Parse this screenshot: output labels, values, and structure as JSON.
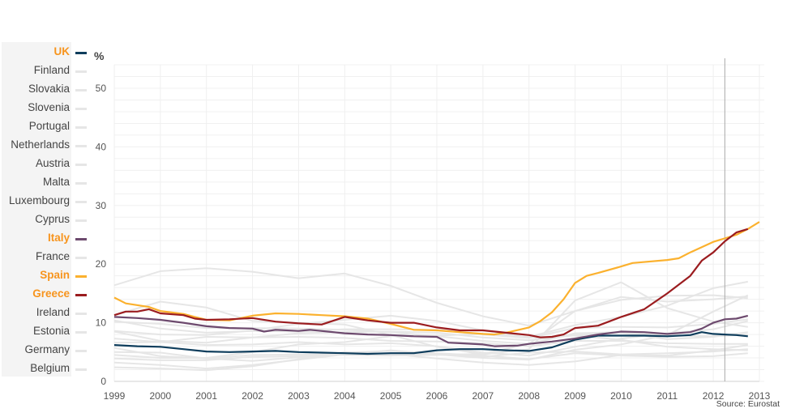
{
  "chart_data": {
    "type": "line",
    "ylabel": "%",
    "source": "Source: Eurostat",
    "xlim": [
      1999,
      2013
    ],
    "ylim": [
      0,
      54
    ],
    "x_ticks": [
      "1999",
      "2000",
      "2001",
      "2002",
      "2003",
      "2004",
      "2005",
      "2006",
      "2007",
      "2008",
      "2009",
      "2010",
      "2011",
      "2012",
      "2013"
    ],
    "y_ticks": [
      "0",
      "10",
      "20",
      "30",
      "40",
      "50"
    ],
    "grid": true,
    "marker_line_x": 2012.25,
    "legend_position": "left",
    "legend": [
      {
        "name": "UK",
        "highlight": true,
        "color": "#0e3d5c"
      },
      {
        "name": "Finland",
        "highlight": false,
        "color": "#e6e6e6"
      },
      {
        "name": "Slovakia",
        "highlight": false,
        "color": "#e6e6e6"
      },
      {
        "name": "Slovenia",
        "highlight": false,
        "color": "#e6e6e6"
      },
      {
        "name": "Portugal",
        "highlight": false,
        "color": "#e6e6e6"
      },
      {
        "name": "Netherlands",
        "highlight": false,
        "color": "#e6e6e6"
      },
      {
        "name": "Austria",
        "highlight": false,
        "color": "#e6e6e6"
      },
      {
        "name": "Malta",
        "highlight": false,
        "color": "#e6e6e6"
      },
      {
        "name": "Luxembourg",
        "highlight": false,
        "color": "#e6e6e6"
      },
      {
        "name": "Cyprus",
        "highlight": false,
        "color": "#e6e6e6"
      },
      {
        "name": "Italy",
        "highlight": true,
        "color": "#6d4a6e"
      },
      {
        "name": "France",
        "highlight": false,
        "color": "#e6e6e6"
      },
      {
        "name": "Spain",
        "highlight": true,
        "color": "#fbb12e"
      },
      {
        "name": "Greece",
        "highlight": true,
        "color": "#9b1c1f"
      },
      {
        "name": "Ireland",
        "highlight": false,
        "color": "#e6e6e6"
      },
      {
        "name": "Estonia",
        "highlight": false,
        "color": "#e6e6e6"
      },
      {
        "name": "Germany",
        "highlight": false,
        "color": "#e6e6e6"
      },
      {
        "name": "Belgium",
        "highlight": false,
        "color": "#e6e6e6"
      }
    ],
    "grey_x": [
      1999,
      2000,
      2001,
      2002,
      2003,
      2004,
      2005,
      2006,
      2007,
      2008,
      2009,
      2010,
      2011,
      2012,
      2012.75
    ],
    "series": [
      {
        "name": "Finland",
        "values": [
          10.2,
          9.8,
          9.1,
          9.1,
          9.0,
          8.8,
          8.4,
          7.7,
          6.9,
          6.4,
          8.2,
          8.4,
          7.8,
          7.7,
          8.0
        ]
      },
      {
        "name": "Slovakia",
        "values": [
          16.4,
          18.8,
          19.3,
          18.7,
          17.6,
          18.4,
          16.3,
          13.4,
          11.1,
          9.5,
          12.0,
          14.4,
          13.6,
          14.0,
          14.5
        ]
      },
      {
        "name": "Slovenia",
        "values": [
          7.3,
          6.7,
          6.2,
          6.3,
          6.7,
          6.3,
          6.5,
          6.0,
          4.9,
          4.4,
          5.9,
          7.3,
          8.2,
          8.9,
          10.3
        ]
      },
      {
        "name": "Portugal",
        "values": [
          4.5,
          4.0,
          4.0,
          5.0,
          6.3,
          6.7,
          7.7,
          7.8,
          8.1,
          7.6,
          9.6,
          11.0,
          12.9,
          15.9,
          17.0
        ]
      },
      {
        "name": "Netherlands",
        "values": [
          3.2,
          2.8,
          2.2,
          2.8,
          3.7,
          4.6,
          4.7,
          3.9,
          3.2,
          2.8,
          3.4,
          4.5,
          4.4,
          5.3,
          6.2
        ]
      },
      {
        "name": "Austria",
        "values": [
          3.9,
          3.6,
          3.6,
          4.2,
          4.3,
          4.9,
          5.2,
          4.8,
          4.4,
          3.8,
          4.8,
          4.4,
          4.2,
          4.3,
          4.8
        ]
      },
      {
        "name": "Malta",
        "values": [
          6.6,
          6.7,
          7.6,
          7.5,
          7.6,
          7.4,
          6.9,
          6.8,
          6.5,
          6.0,
          6.9,
          6.9,
          6.5,
          6.4,
          6.4
        ]
      },
      {
        "name": "Luxembourg",
        "values": [
          2.4,
          2.2,
          1.9,
          2.6,
          3.8,
          5.0,
          4.6,
          4.6,
          4.2,
          4.9,
          5.1,
          4.6,
          4.8,
          5.1,
          5.5
        ]
      },
      {
        "name": "Cyprus",
        "values": [
          5.0,
          4.9,
          3.9,
          3.5,
          4.1,
          4.6,
          5.3,
          4.6,
          4.0,
          3.7,
          5.4,
          6.3,
          7.9,
          11.9,
          14.7
        ]
      },
      {
        "name": "France",
        "values": [
          10.4,
          9.0,
          8.3,
          8.6,
          8.5,
          8.9,
          8.9,
          8.8,
          8.0,
          7.4,
          9.1,
          9.3,
          9.2,
          9.8,
          10.6
        ]
      },
      {
        "name": "Ireland",
        "values": [
          5.7,
          4.3,
          3.9,
          4.5,
          4.6,
          4.5,
          4.4,
          4.5,
          4.7,
          6.4,
          12.0,
          13.9,
          14.6,
          14.7,
          14.2
        ]
      },
      {
        "name": "Estonia",
        "values": [
          11.3,
          13.6,
          12.6,
          10.3,
          10.0,
          9.7,
          7.9,
          5.9,
          4.6,
          5.5,
          13.8,
          16.9,
          12.5,
          10.2,
          9.3
        ]
      },
      {
        "name": "Germany",
        "values": [
          8.6,
          8.0,
          7.9,
          8.7,
          9.8,
          10.5,
          11.2,
          10.3,
          8.7,
          7.5,
          7.8,
          7.1,
          5.9,
          5.5,
          5.3
        ]
      },
      {
        "name": "Belgium",
        "values": [
          8.5,
          6.9,
          6.6,
          7.5,
          8.2,
          8.4,
          8.5,
          8.3,
          7.5,
          7.0,
          7.9,
          8.3,
          7.2,
          7.6,
          8.4
        ]
      },
      {
        "name": "UK",
        "x": [
          1999,
          1999.5,
          2000,
          2000.5,
          2001,
          2001.5,
          2002,
          2002.5,
          2003,
          2003.5,
          2004,
          2004.5,
          2005,
          2005.5,
          2006,
          2006.5,
          2007,
          2007.5,
          2008,
          2008.5,
          2009,
          2009.5,
          2010,
          2010.5,
          2011,
          2011.5,
          2011.75,
          2012,
          2012.5,
          2012.75
        ],
        "values": [
          6.2,
          6.0,
          5.9,
          5.5,
          5.1,
          5.0,
          5.1,
          5.2,
          5.0,
          4.9,
          4.8,
          4.7,
          4.8,
          4.8,
          5.3,
          5.5,
          5.5,
          5.3,
          5.2,
          5.8,
          7.1,
          7.8,
          7.8,
          7.8,
          7.7,
          7.9,
          8.4,
          8.1,
          7.9,
          7.7
        ]
      },
      {
        "name": "Italy",
        "x": [
          1999,
          1999.5,
          2000,
          2000.5,
          2001,
          2001.5,
          2002,
          2002.25,
          2002.5,
          2003,
          2003.25,
          2004,
          2004.5,
          2005,
          2005.5,
          2006,
          2006.25,
          2006.5,
          2007,
          2007.25,
          2007.75,
          2008,
          2008.5,
          2009,
          2009.5,
          2010,
          2010.5,
          2011,
          2011.5,
          2011.75,
          2012,
          2012.25,
          2012.5,
          2012.75
        ],
        "values": [
          11.0,
          10.8,
          10.5,
          10.0,
          9.4,
          9.1,
          9.0,
          8.5,
          8.8,
          8.6,
          8.8,
          8.2,
          8.0,
          7.9,
          7.7,
          7.6,
          6.6,
          6.5,
          6.3,
          6.0,
          6.1,
          6.4,
          6.8,
          7.3,
          8.0,
          8.5,
          8.4,
          8.1,
          8.4,
          9.0,
          10.0,
          10.6,
          10.7,
          11.2
        ]
      },
      {
        "name": "Spain",
        "x": [
          1999,
          1999.25,
          1999.75,
          2000,
          2000.5,
          2000.75,
          2001,
          2001.5,
          2002,
          2002.5,
          2003,
          2003.5,
          2004,
          2004.5,
          2005,
          2005.5,
          2006,
          2006.5,
          2007,
          2007.25,
          2007.5,
          2008,
          2008.25,
          2008.5,
          2008.75,
          2009,
          2009.25,
          2009.5,
          2010,
          2010.25,
          2011,
          2011.25,
          2011.5,
          2012,
          2012.5,
          2012.75,
          2013
        ],
        "values": [
          14.3,
          13.3,
          12.7,
          12.0,
          11.5,
          11.0,
          10.5,
          10.4,
          11.2,
          11.6,
          11.5,
          11.3,
          11.1,
          10.7,
          9.8,
          8.8,
          8.7,
          8.4,
          8.1,
          8.0,
          8.3,
          9.2,
          10.3,
          11.8,
          14.0,
          16.8,
          18.0,
          18.5,
          19.6,
          20.2,
          20.7,
          21.0,
          22.0,
          23.8,
          25.0,
          26.0,
          27.2
        ]
      },
      {
        "name": "Greece",
        "x": [
          1999,
          1999.25,
          1999.5,
          1999.75,
          2000,
          2000.5,
          2000.75,
          2001,
          2001.5,
          2002,
          2002.5,
          2003,
          2003.5,
          2004,
          2004.5,
          2005,
          2005.5,
          2006,
          2006.5,
          2007,
          2007.5,
          2008,
          2008.25,
          2008.5,
          2008.75,
          2009,
          2009.5,
          2010,
          2010.5,
          2011,
          2011.5,
          2011.75,
          2012,
          2012.25,
          2012.5,
          2012.75
        ],
        "values": [
          11.3,
          11.9,
          11.9,
          12.3,
          11.6,
          11.3,
          10.7,
          10.5,
          10.6,
          10.8,
          10.2,
          9.9,
          9.7,
          11.0,
          10.4,
          10.0,
          10.0,
          9.2,
          8.7,
          8.7,
          8.3,
          7.9,
          7.5,
          7.6,
          8.0,
          9.1,
          9.5,
          11.0,
          12.3,
          15.0,
          18.0,
          20.6,
          22.0,
          23.9,
          25.4,
          26.0
        ]
      }
    ]
  }
}
